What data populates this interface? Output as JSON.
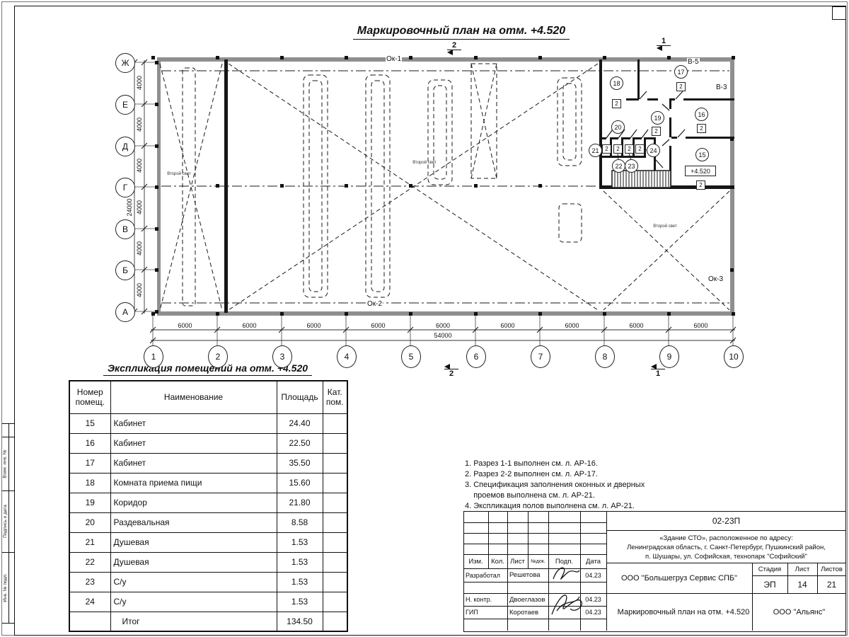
{
  "colors": {
    "line": "#1a1a1a",
    "wall_gray": "#8f8f8f",
    "paper": "#ffffff"
  },
  "titles": {
    "plan": "Маркировочный план на отм. +4.520",
    "table": "Экспликация помещений на отм. +4.520"
  },
  "plan": {
    "row_axes": [
      "Ж",
      "Е",
      "Д",
      "Г",
      "В",
      "Б",
      "А"
    ],
    "col_axes": [
      "1",
      "2",
      "3",
      "4",
      "5",
      "6",
      "7",
      "8",
      "9",
      "10"
    ],
    "v_dims": [
      "4000",
      "4000",
      "4000",
      "4000",
      "4000",
      "4000"
    ],
    "v_total": "24000",
    "h_dims": [
      "6000",
      "6000",
      "6000",
      "6000",
      "6000",
      "6000",
      "6000",
      "6000",
      "6000"
    ],
    "h_total": "54000",
    "window_marks": [
      "Ок-1",
      "Ок-2",
      "Ок-3",
      "В-5",
      "В-3"
    ],
    "second_light": "Второй свет",
    "elevation": "+4.520",
    "category_mark": "2",
    "rooms": [
      "15",
      "16",
      "17",
      "18",
      "19",
      "20",
      "21",
      "22",
      "23",
      "24"
    ],
    "section_marks": [
      "2",
      "1",
      "2",
      "1"
    ]
  },
  "schedule": {
    "headers": [
      "Номер помещ.",
      "Наименование",
      "Площадь",
      "Кат. пом."
    ],
    "rows": [
      {
        "num": "15",
        "name": "Кабинет",
        "area": "24.40",
        "cat": ""
      },
      {
        "num": "16",
        "name": "Кабинет",
        "area": "22.50",
        "cat": ""
      },
      {
        "num": "17",
        "name": "Кабинет",
        "area": "35.50",
        "cat": ""
      },
      {
        "num": "18",
        "name": "Комната приема пищи",
        "area": "15.60",
        "cat": ""
      },
      {
        "num": "19",
        "name": "Коридор",
        "area": "21.80",
        "cat": ""
      },
      {
        "num": "20",
        "name": "Раздевальная",
        "area": "8.58",
        "cat": ""
      },
      {
        "num": "21",
        "name": "Душевая",
        "area": "1.53",
        "cat": ""
      },
      {
        "num": "22",
        "name": "Душевая",
        "area": "1.53",
        "cat": ""
      },
      {
        "num": "23",
        "name": "С/у",
        "area": "1.53",
        "cat": ""
      },
      {
        "num": "24",
        "name": "С/у",
        "area": "1.53",
        "cat": ""
      },
      {
        "num": "",
        "name": "Итог",
        "area": "134.50",
        "cat": ""
      }
    ]
  },
  "notes": [
    "1. Разрез 1-1 выполнен см. л. АР-16.",
    "2. Разрез 2-2 выполнен см. л. АР-17.",
    "3. Спецификация заполнения оконных и дверных",
    "    проемов выполнена см. л. АР-21.",
    "4. Экспликация полов выполнена см. л. АР-21."
  ],
  "stamp": {
    "code": "02-23П",
    "address_lines": [
      "«Здание СТО», расположенное по адресу:",
      "Ленинградская область, г. Санкт-Петербург, Пушкинский район,",
      "п. Шушары, ул. Софийская, технопарк \"Софийский\""
    ],
    "header_cols": [
      "Изм.",
      "Кол.",
      "Лист",
      "№док.",
      "Подп.",
      "Дата"
    ],
    "sign_rows": [
      {
        "role": "Разработал",
        "name": "Решетова",
        "date": "04.23"
      },
      {
        "role": "Н. контр.",
        "name": "Двоеглазов",
        "date": "04.23"
      },
      {
        "role": "ГИП",
        "name": "Коротаев",
        "date": "04.23"
      }
    ],
    "company": "ООО \"Большегруз Сервис СПБ\"",
    "stage_headers": [
      "Стадия",
      "Лист",
      "Листов"
    ],
    "stage_values": [
      "ЭП",
      "14",
      "21"
    ],
    "doc_name": "Маркировочный план на отм. +4.520",
    "org": "ООО \"Альянс\""
  },
  "side_labels": [
    "Взам. инв. №",
    "Подпись и дата",
    "Инв. № подл."
  ]
}
